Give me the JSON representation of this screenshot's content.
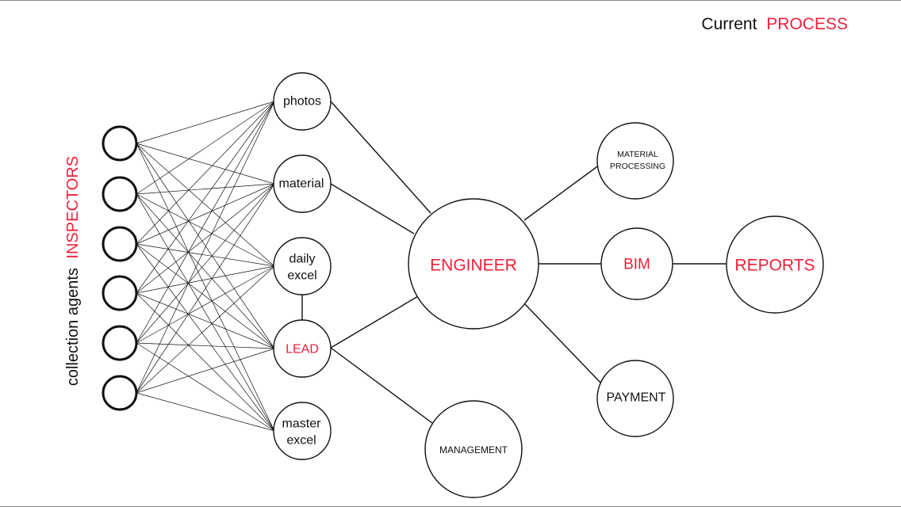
{
  "title": {
    "prefix": "Current",
    "highlight": "PROCESS"
  },
  "side_label": {
    "prefix": "collection agents",
    "highlight": "INSPECTORS"
  },
  "nodes": {
    "photos": "photos",
    "material": "material",
    "daily_excel": [
      "daily",
      "excel"
    ],
    "lead": "LEAD",
    "master_excel": [
      "master",
      "excel"
    ],
    "engineer": "ENGINEER",
    "management": "MANAGEMENT",
    "material_processing": [
      "MATERIAL",
      "PROCESSING"
    ],
    "bim": "BIM",
    "payment": "PAYMENT",
    "reports": "REPORTS"
  },
  "colors": {
    "accent": "#f0213a",
    "text": "#111111",
    "line": "#111111"
  }
}
